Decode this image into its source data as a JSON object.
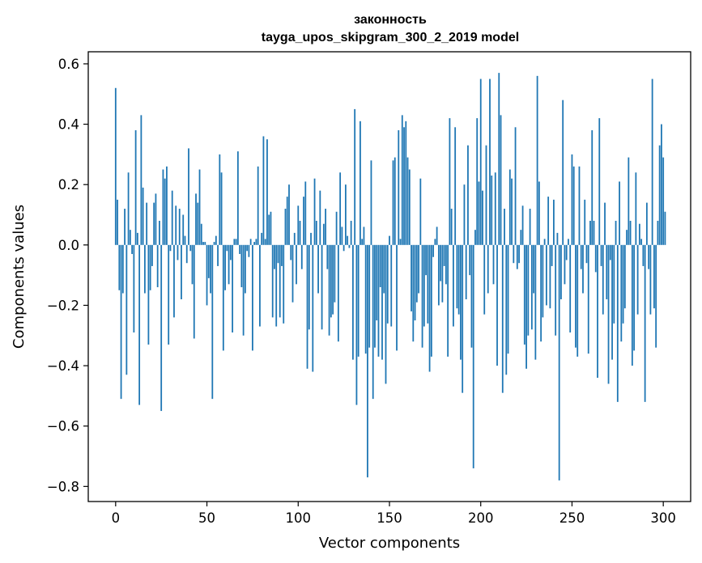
{
  "chart_data": {
    "type": "bar",
    "title_line1": "законность",
    "title_line2": "tayga_upos_skipgram_300_2_2019 model",
    "xlabel": "Vector components",
    "ylabel": "Components values",
    "xlim": [
      -15,
      315
    ],
    "ylim": [
      -0.85,
      0.64
    ],
    "xticks": [
      0,
      50,
      100,
      150,
      200,
      250,
      300
    ],
    "xtick_labels": [
      "0",
      "50",
      "100",
      "150",
      "200",
      "250",
      "300"
    ],
    "yticks": [
      -0.8,
      -0.6,
      -0.4,
      -0.2,
      0.0,
      0.2,
      0.4,
      0.6
    ],
    "ytick_labels": [
      "−0.8",
      "−0.6",
      "−0.4",
      "−0.2",
      "0.0",
      "0.2",
      "0.4",
      "0.6"
    ],
    "bar_color": "#1f77b4",
    "values": [
      0.52,
      0.15,
      -0.15,
      -0.51,
      -0.16,
      0.12,
      -0.43,
      0.24,
      0.05,
      -0.03,
      -0.29,
      0.38,
      0.04,
      -0.53,
      0.43,
      0.19,
      -0.16,
      0.14,
      -0.33,
      -0.15,
      -0.07,
      0.14,
      0.17,
      -0.14,
      0.08,
      -0.55,
      0.25,
      0.22,
      0.26,
      -0.33,
      -0.02,
      0.18,
      -0.24,
      0.13,
      -0.05,
      0.12,
      -0.18,
      0.1,
      0.03,
      -0.06,
      0.32,
      -0.02,
      -0.13,
      -0.31,
      0.17,
      0.14,
      0.25,
      0.07,
      0.01,
      0.01,
      -0.2,
      -0.11,
      -0.16,
      -0.51,
      0.01,
      0.03,
      -0.07,
      0.3,
      0.24,
      -0.35,
      -0.15,
      -0.02,
      -0.13,
      -0.05,
      -0.29,
      0.02,
      0.02,
      0.31,
      -0.03,
      -0.14,
      -0.3,
      -0.16,
      -0.02,
      -0.04,
      0.02,
      -0.35,
      0.01,
      0.02,
      0.26,
      -0.27,
      0.04,
      0.36,
      0.02,
      0.35,
      0.1,
      0.11,
      -0.24,
      -0.08,
      -0.27,
      -0.06,
      -0.24,
      -0.07,
      -0.26,
      0.12,
      0.16,
      0.2,
      -0.05,
      -0.19,
      0.04,
      -0.13,
      0.13,
      0.08,
      -0.08,
      0.16,
      0.21,
      -0.41,
      -0.28,
      0.04,
      -0.42,
      0.22,
      0.08,
      -0.16,
      0.18,
      -0.28,
      0.07,
      0.12,
      -0.08,
      -0.3,
      -0.24,
      -0.23,
      -0.19,
      0.11,
      -0.32,
      0.24,
      0.06,
      -0.02,
      0.2,
      0.03,
      -0.01,
      0.08,
      -0.38,
      0.45,
      -0.53,
      -0.37,
      0.41,
      0.02,
      0.06,
      -0.36,
      -0.77,
      -0.34,
      0.28,
      -0.51,
      -0.34,
      -0.25,
      -0.37,
      -0.14,
      -0.38,
      -0.16,
      -0.46,
      -0.26,
      0.03,
      -0.27,
      0.28,
      0.29,
      -0.35,
      0.38,
      0.02,
      0.43,
      0.39,
      0.41,
      0.29,
      0.25,
      -0.22,
      -0.32,
      -0.25,
      -0.19,
      -0.16,
      0.22,
      -0.34,
      -0.27,
      -0.1,
      -0.26,
      -0.42,
      -0.37,
      -0.04,
      0.02,
      0.06,
      -0.2,
      -0.12,
      -0.19,
      -0.07,
      -0.13,
      -0.37,
      0.42,
      0.12,
      -0.27,
      0.39,
      -0.21,
      -0.23,
      -0.38,
      -0.49,
      0.2,
      -0.18,
      0.33,
      -0.1,
      -0.34,
      -0.74,
      0.05,
      0.42,
      0.21,
      0.55,
      0.18,
      -0.23,
      0.33,
      -0.16,
      0.55,
      0.23,
      -0.13,
      0.24,
      -0.4,
      0.57,
      0.43,
      -0.49,
      0.12,
      -0.43,
      -0.36,
      0.25,
      0.22,
      -0.06,
      0.39,
      -0.08,
      -0.06,
      0.05,
      0.13,
      -0.33,
      -0.41,
      -0.3,
      0.12,
      -0.28,
      -0.16,
      -0.38,
      0.56,
      0.21,
      -0.32,
      -0.24,
      0.02,
      -0.2,
      0.16,
      -0.21,
      -0.07,
      0.15,
      -0.3,
      0.04,
      -0.78,
      -0.18,
      0.48,
      -0.13,
      -0.05,
      0.02,
      -0.29,
      0.3,
      0.26,
      -0.34,
      -0.37,
      0.26,
      -0.08,
      -0.16,
      0.15,
      -0.06,
      -0.36,
      0.08,
      0.38,
      0.08,
      -0.09,
      -0.44,
      0.42,
      -0.07,
      -0.23,
      0.14,
      -0.18,
      -0.46,
      -0.05,
      -0.38,
      -0.26,
      0.08,
      -0.52,
      0.21,
      -0.32,
      -0.26,
      -0.21,
      0.05,
      0.29,
      0.08,
      -0.4,
      -0.35,
      0.24,
      -0.23,
      0.07,
      0.02,
      -0.07,
      -0.52,
      0.14,
      -0.08,
      -0.23,
      0.55,
      -0.21,
      -0.34,
      0.08,
      0.33,
      0.4,
      0.29,
      0.11
    ]
  }
}
